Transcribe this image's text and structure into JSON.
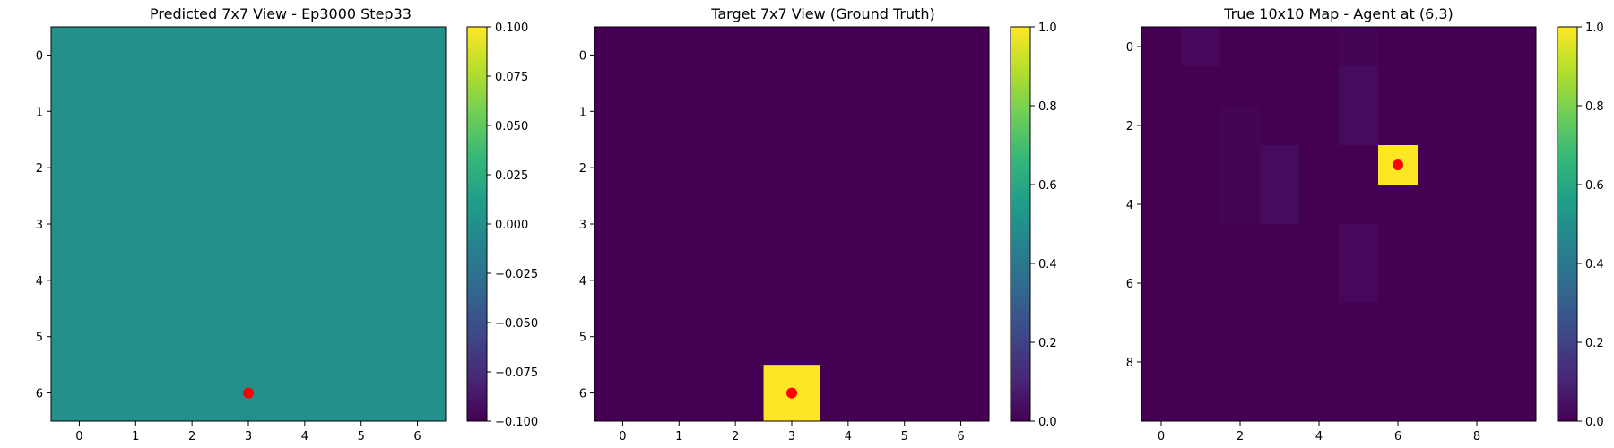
{
  "chart_data": [
    {
      "type": "heatmap",
      "title": "Predicted 7x7 View - Ep3000 Step33",
      "grid_size": 7,
      "x_ticks": [
        0,
        1,
        2,
        3,
        4,
        5,
        6
      ],
      "y_ticks": [
        0,
        1,
        2,
        3,
        4,
        5,
        6
      ],
      "values": [
        [
          0,
          0,
          0,
          0,
          0,
          0,
          0
        ],
        [
          0,
          0,
          0,
          0,
          0,
          0,
          0
        ],
        [
          0,
          0,
          0,
          0,
          0,
          0,
          0
        ],
        [
          0,
          0,
          0,
          0,
          0,
          0,
          0
        ],
        [
          0,
          0,
          0,
          0,
          0,
          0,
          0
        ],
        [
          0,
          0,
          0,
          0,
          0,
          0,
          0
        ],
        [
          0,
          0,
          0,
          0,
          0,
          0,
          0
        ]
      ],
      "vmin": -0.1,
      "vmax": 0.1,
      "colorbar_ticks": [
        "0.100",
        "0.075",
        "0.050",
        "0.025",
        "0.000",
        "−0.025",
        "−0.050",
        "−0.075",
        "−0.100"
      ],
      "colorbar_tick_values": [
        0.1,
        0.075,
        0.05,
        0.025,
        0.0,
        -0.025,
        -0.05,
        -0.075,
        -0.1
      ],
      "marker": {
        "x": 3,
        "y": 6,
        "color": "#ff0000"
      }
    },
    {
      "type": "heatmap",
      "title": "Target 7x7 View (Ground Truth)",
      "grid_size": 7,
      "x_ticks": [
        0,
        1,
        2,
        3,
        4,
        5,
        6
      ],
      "y_ticks": [
        0,
        1,
        2,
        3,
        4,
        5,
        6
      ],
      "values": [
        [
          0,
          0,
          0,
          0,
          0,
          0,
          0
        ],
        [
          0,
          0,
          0,
          0,
          0,
          0,
          0
        ],
        [
          0,
          0,
          0,
          0,
          0,
          0,
          0
        ],
        [
          0,
          0,
          0,
          0,
          0,
          0,
          0
        ],
        [
          0,
          0,
          0,
          0,
          0,
          0,
          0
        ],
        [
          0,
          0,
          0,
          0,
          0,
          0,
          0
        ],
        [
          0,
          0,
          0,
          1,
          0,
          0,
          0
        ]
      ],
      "vmin": 0,
      "vmax": 1,
      "colorbar_ticks": [
        "1.0",
        "0.8",
        "0.6",
        "0.4",
        "0.2",
        "0.0"
      ],
      "colorbar_tick_values": [
        1.0,
        0.8,
        0.6,
        0.4,
        0.2,
        0.0
      ],
      "marker": {
        "x": 3,
        "y": 6,
        "color": "#ff0000"
      }
    },
    {
      "type": "heatmap",
      "title": "True 10x10 Map - Agent at (6,3)",
      "grid_size": 10,
      "x_ticks": [
        0,
        2,
        4,
        6,
        8
      ],
      "y_ticks": [
        0,
        2,
        4,
        6,
        8
      ],
      "values": [
        [
          0,
          0.02,
          0,
          0,
          0,
          0.01,
          0,
          0,
          0,
          0
        ],
        [
          0,
          0,
          0,
          0,
          0,
          0.03,
          0,
          0,
          0,
          0
        ],
        [
          0,
          0,
          0.01,
          0,
          0,
          0.03,
          0,
          0,
          0,
          0
        ],
        [
          0,
          0,
          0.01,
          0.03,
          0,
          0,
          1,
          0,
          0,
          0
        ],
        [
          0,
          0,
          0.01,
          0.03,
          0,
          0,
          0,
          0,
          0,
          0
        ],
        [
          0,
          0,
          0,
          0,
          0,
          0.02,
          0,
          0,
          0,
          0
        ],
        [
          0,
          0,
          0,
          0,
          0,
          0.02,
          0,
          0,
          0,
          0
        ],
        [
          0,
          0,
          0,
          0,
          0,
          0,
          0,
          0,
          0,
          0
        ],
        [
          0,
          0,
          0,
          0,
          0,
          0,
          0,
          0,
          0,
          0
        ],
        [
          0,
          0,
          0,
          0,
          0,
          0,
          0,
          0,
          0,
          0
        ]
      ],
      "vmin": 0,
      "vmax": 1,
      "colorbar_ticks": [
        "1.0",
        "0.8",
        "0.6",
        "0.4",
        "0.2",
        "0.0"
      ],
      "colorbar_tick_values": [
        1.0,
        0.8,
        0.6,
        0.4,
        0.2,
        0.0
      ],
      "marker": {
        "x": 6,
        "y": 3,
        "color": "#ff0000"
      }
    }
  ],
  "colormap": "viridis",
  "colormap_stops": [
    "#440154",
    "#482878",
    "#3e4989",
    "#31688e",
    "#26828e",
    "#1f9e89",
    "#35b779",
    "#6ece58",
    "#b5de2b",
    "#fde725"
  ],
  "axis_color": "#000000",
  "background": "#ffffff"
}
